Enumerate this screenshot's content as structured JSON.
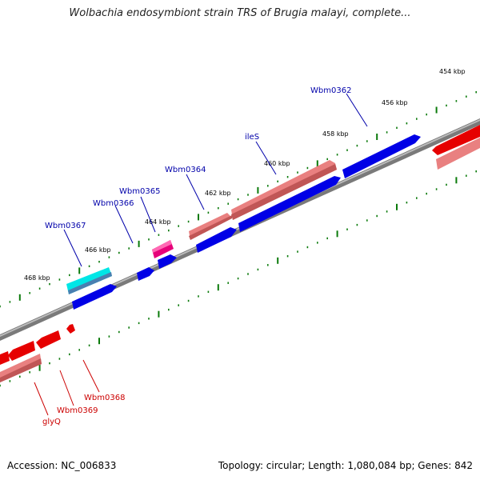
{
  "title": "Wolbachia endosymbiont strain TRS of Brugia malayi, complete...",
  "footer": {
    "accession": "Accession: NC_006833",
    "stats": "Topology: circular; Length: 1,080,084 bp; Genes: 842"
  },
  "colors": {
    "forward_cds": "#0000e6",
    "reverse_cds": "#e60000",
    "rna_light": "#f08080",
    "cyan_gene": "#00e6e6",
    "magenta_gene": "#e6007a",
    "backbone": "#777777",
    "tick": "#0a7a0a",
    "label_blue": "#0000aa",
    "label_red": "#cc0000"
  },
  "kbp_labels": [
    "454 kbp",
    "456 kbp",
    "458 kbp",
    "460 kbp",
    "462 kbp",
    "464 kbp",
    "466 kbp",
    "468 kbp"
  ],
  "gene_labels_top": [
    "Wbm0362",
    "ileS",
    "Wbm0364",
    "Wbm0365",
    "Wbm0366",
    "Wbm0367"
  ],
  "gene_labels_bottom": [
    "Wbm0368",
    "Wbm0369",
    "glyQ"
  ]
}
